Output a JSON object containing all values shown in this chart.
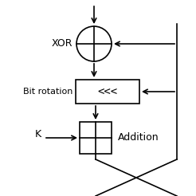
{
  "bg_color": "#ffffff",
  "fg_color": "#000000",
  "gray_color": "#999999",
  "label_xor": "XOR",
  "label_rot": "Bit rotation",
  "label_add": "Addition",
  "label_k": "K",
  "figsize": [
    2.46,
    2.46
  ],
  "dpi": 100
}
